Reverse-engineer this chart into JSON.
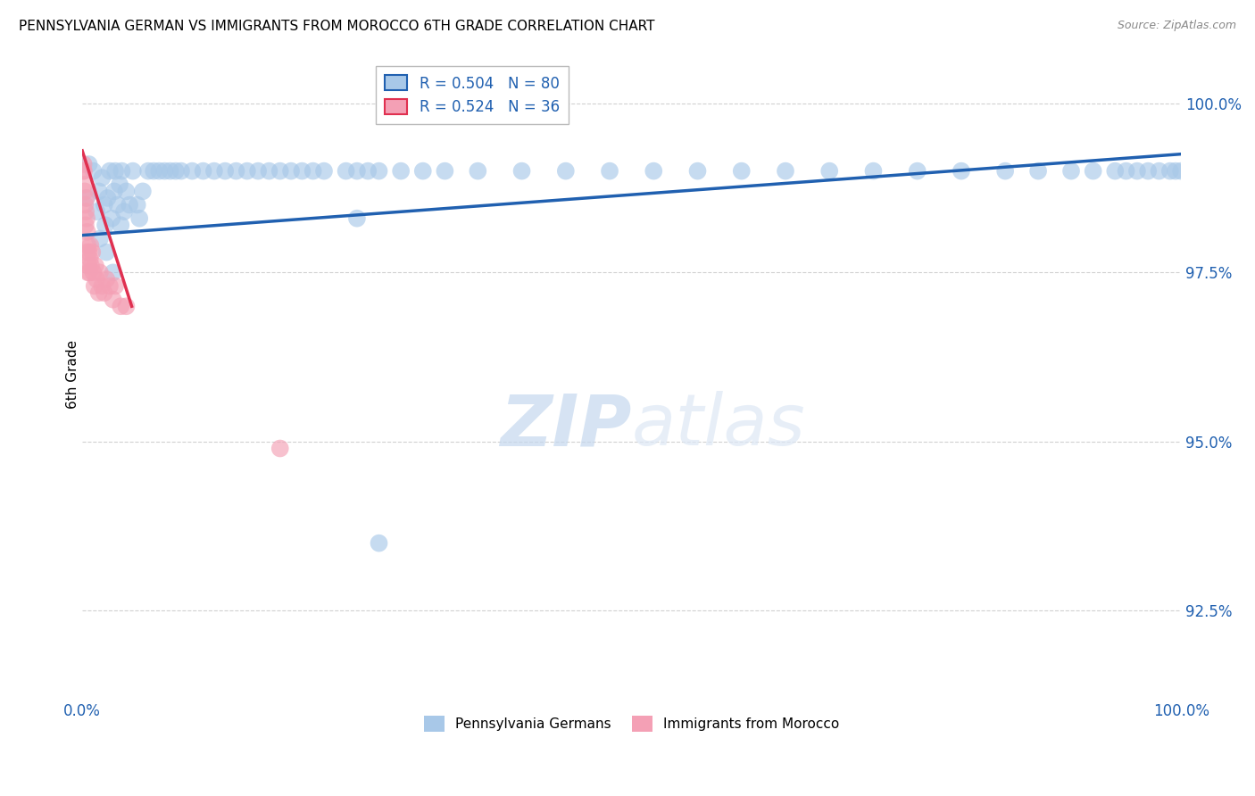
{
  "title": "PENNSYLVANIA GERMAN VS IMMIGRANTS FROM MOROCCO 6TH GRADE CORRELATION CHART",
  "source": "Source: ZipAtlas.com",
  "ylabel": "6th Grade",
  "yticks": [
    92.5,
    95.0,
    97.5,
    100.0
  ],
  "ytick_labels": [
    "92.5%",
    "95.0%",
    "97.5%",
    "100.0%"
  ],
  "xmin": 0.0,
  "xmax": 100.0,
  "ymin": 91.2,
  "ymax": 100.8,
  "blue_color": "#a8c8e8",
  "pink_color": "#f4a0b5",
  "blue_line_color": "#2060b0",
  "pink_line_color": "#e03050",
  "legend_blue_label": "R = 0.504   N = 80",
  "legend_pink_label": "R = 0.524   N = 36",
  "legend1_label": "Pennsylvania Germans",
  "legend2_label": "Immigrants from Morocco",
  "watermark_zip": "ZIP",
  "watermark_atlas": "atlas",
  "blue_scatter_x": [
    0.4,
    0.6,
    1.0,
    1.3,
    1.5,
    1.8,
    2.0,
    2.1,
    2.3,
    2.5,
    2.7,
    2.9,
    3.0,
    3.2,
    3.4,
    3.6,
    3.8,
    4.0,
    4.3,
    4.6,
    5.0,
    5.2,
    5.5,
    6.0,
    6.5,
    7.0,
    7.5,
    8.0,
    8.5,
    9.0,
    10.0,
    11.0,
    12.0,
    13.0,
    14.0,
    15.0,
    16.0,
    17.0,
    18.0,
    19.0,
    20.0,
    21.0,
    22.0,
    24.0,
    25.0,
    26.0,
    27.0,
    29.0,
    31.0,
    33.0,
    36.0,
    40.0,
    44.0,
    48.0,
    52.0,
    56.0,
    60.0,
    64.0,
    68.0,
    72.0,
    76.0,
    80.0,
    84.0,
    87.0,
    90.0,
    92.0,
    94.0,
    95.0,
    96.0,
    97.0,
    98.0,
    99.0,
    99.5,
    100.0,
    1.6,
    2.2,
    2.8,
    3.5,
    25.0,
    27.0
  ],
  "blue_scatter_y": [
    98.6,
    99.1,
    99.0,
    98.4,
    98.7,
    98.9,
    98.5,
    98.2,
    98.6,
    99.0,
    98.3,
    98.7,
    99.0,
    98.5,
    98.8,
    99.0,
    98.4,
    98.7,
    98.5,
    99.0,
    98.5,
    98.3,
    98.7,
    99.0,
    99.0,
    99.0,
    99.0,
    99.0,
    99.0,
    99.0,
    99.0,
    99.0,
    99.0,
    99.0,
    99.0,
    99.0,
    99.0,
    99.0,
    99.0,
    99.0,
    99.0,
    99.0,
    99.0,
    99.0,
    99.0,
    99.0,
    99.0,
    99.0,
    99.0,
    99.0,
    99.0,
    99.0,
    99.0,
    99.0,
    99.0,
    99.0,
    99.0,
    99.0,
    99.0,
    99.0,
    99.0,
    99.0,
    99.0,
    99.0,
    99.0,
    99.0,
    99.0,
    99.0,
    99.0,
    99.0,
    99.0,
    99.0,
    99.0,
    99.0,
    98.0,
    97.8,
    97.5,
    98.2,
    98.3,
    93.5
  ],
  "pink_scatter_x": [
    0.1,
    0.15,
    0.2,
    0.25,
    0.3,
    0.35,
    0.4,
    0.45,
    0.5,
    0.55,
    0.6,
    0.65,
    0.7,
    0.75,
    0.8,
    0.9,
    1.0,
    1.1,
    1.2,
    1.3,
    1.5,
    1.6,
    1.8,
    2.0,
    2.2,
    2.5,
    2.8,
    3.0,
    3.5,
    4.0,
    0.12,
    0.22,
    0.32,
    0.42,
    0.52,
    18.0
  ],
  "pink_scatter_y": [
    99.0,
    99.0,
    98.8,
    98.5,
    98.2,
    98.6,
    98.3,
    98.1,
    97.9,
    97.6,
    97.8,
    97.5,
    97.7,
    97.9,
    97.6,
    97.8,
    97.5,
    97.3,
    97.6,
    97.4,
    97.2,
    97.5,
    97.3,
    97.2,
    97.4,
    97.3,
    97.1,
    97.3,
    97.0,
    97.0,
    99.1,
    98.7,
    98.4,
    97.8,
    97.5,
    94.9
  ],
  "blue_trend_x": [
    0.0,
    100.0
  ],
  "blue_trend_y": [
    98.05,
    99.25
  ],
  "pink_trend_x": [
    0.0,
    4.5
  ],
  "pink_trend_y": [
    99.3,
    97.0
  ]
}
